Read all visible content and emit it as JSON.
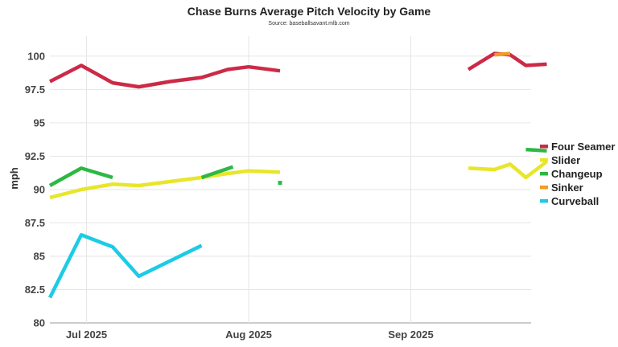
{
  "chart_data": {
    "type": "line",
    "title": "Chase Burns Average Pitch Velocity by Game",
    "subtitle": "Source: baseballsavant.mlb.com",
    "xlabel": "",
    "ylabel": "mph",
    "ylim": [
      80,
      101.5
    ],
    "xlim": [
      "2025-06-24",
      "2025-09-24"
    ],
    "yticks": [
      80,
      82.5,
      85,
      87.5,
      90,
      92.5,
      95,
      97.5,
      100
    ],
    "ytick_labels": [
      "80",
      "82.5",
      "85",
      "87.5",
      "90",
      "92.5",
      "95",
      "97.5",
      "100"
    ],
    "xticks": [
      {
        "date": "2025-07-01",
        "label": "Jul 2025"
      },
      {
        "date": "2025-08-01",
        "label": "Aug 2025"
      },
      {
        "date": "2025-09-01",
        "label": "Sep 2025"
      }
    ],
    "grid": true,
    "legend_position": "right",
    "series": [
      {
        "name": "Four Seamer",
        "color": "#cc2a47",
        "segments": [
          [
            [
              "2025-06-24",
              98.1
            ],
            [
              "2025-06-30",
              99.3
            ],
            [
              "2025-07-06",
              98.0
            ],
            [
              "2025-07-11",
              97.7
            ],
            [
              "2025-07-17",
              98.1
            ],
            [
              "2025-07-23",
              98.4
            ],
            [
              "2025-07-28",
              99.0
            ],
            [
              "2025-08-01",
              99.2
            ],
            [
              "2025-08-07",
              98.9
            ]
          ],
          [
            [
              "2025-09-12",
              99.0
            ],
            [
              "2025-09-17",
              100.2
            ],
            [
              "2025-09-20",
              100.1
            ],
            [
              "2025-09-23",
              99.3
            ],
            [
              "2025-09-27",
              99.4
            ]
          ]
        ]
      },
      {
        "name": "Slider",
        "color": "#e8e629",
        "segments": [
          [
            [
              "2025-06-24",
              89.4
            ],
            [
              "2025-06-30",
              90.0
            ],
            [
              "2025-07-06",
              90.4
            ],
            [
              "2025-07-11",
              90.3
            ],
            [
              "2025-07-17",
              90.6
            ],
            [
              "2025-07-23",
              90.9
            ],
            [
              "2025-07-28",
              91.2
            ],
            [
              "2025-08-01",
              91.4
            ],
            [
              "2025-08-07",
              91.3
            ]
          ],
          [
            [
              "2025-09-12",
              91.6
            ],
            [
              "2025-09-17",
              91.5
            ],
            [
              "2025-09-20",
              91.9
            ],
            [
              "2025-09-23",
              90.9
            ],
            [
              "2025-09-27",
              92.1
            ]
          ]
        ]
      },
      {
        "name": "Changeup",
        "color": "#2db843",
        "segments": [
          [
            [
              "2025-06-24",
              90.3
            ],
            [
              "2025-06-30",
              91.6
            ],
            [
              "2025-07-06",
              90.9
            ]
          ],
          [
            [
              "2025-07-23",
              90.9
            ],
            [
              "2025-07-29",
              91.7
            ]
          ],
          [
            [
              "2025-08-07",
              90.5
            ]
          ],
          [
            [
              "2025-09-23",
              93.0
            ],
            [
              "2025-09-27",
              92.9
            ]
          ]
        ]
      },
      {
        "name": "Sinker",
        "color": "#f29b22",
        "segments": [
          [
            [
              "2025-09-17",
              100.1
            ],
            [
              "2025-09-20",
              100.2
            ]
          ]
        ]
      },
      {
        "name": "Curveball",
        "color": "#1ccbe6",
        "segments": [
          [
            [
              "2025-06-24",
              81.9
            ],
            [
              "2025-06-30",
              86.6
            ],
            [
              "2025-07-06",
              85.7
            ],
            [
              "2025-07-11",
              83.5
            ],
            [
              "2025-07-23",
              85.8
            ]
          ]
        ]
      }
    ]
  }
}
